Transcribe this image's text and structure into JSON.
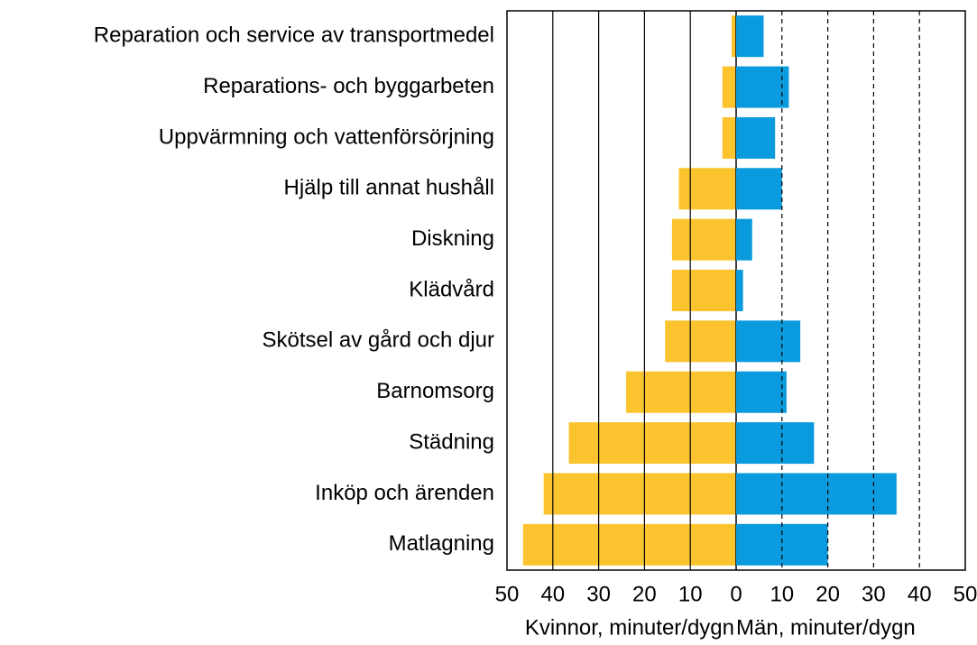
{
  "chart_data": {
    "type": "butterfly",
    "categories": [
      "Reparation och service av transportmedel",
      "Reparations- och byggarbeten",
      "Uppvärmning och vattenförsörjning",
      "Hjälp till annat hushåll",
      "Diskning",
      "Klädvård",
      "Skötsel av gård och djur",
      "Barnomsorg",
      "Städning",
      "Inköp och ärenden",
      "Matlagning"
    ],
    "left": {
      "xlabel": "Kvinnor, minuter/dygn",
      "color": "#fbc42e",
      "values": [
        1,
        3,
        3,
        12.5,
        14,
        14,
        15.5,
        24,
        36.5,
        42,
        46.5
      ],
      "xlim": [
        0,
        50
      ],
      "xticks": [
        50,
        40,
        30,
        20,
        10,
        0
      ],
      "grid": "solid"
    },
    "right": {
      "xlabel": "Män, minuter/dygn",
      "color": "#0a9ade",
      "values": [
        6,
        11.5,
        8.5,
        10,
        3.5,
        1.5,
        14,
        11,
        17,
        35,
        20
      ],
      "xlim": [
        0,
        50
      ],
      "xticks": [
        10,
        20,
        30,
        40,
        50
      ],
      "grid": "dashed"
    }
  }
}
